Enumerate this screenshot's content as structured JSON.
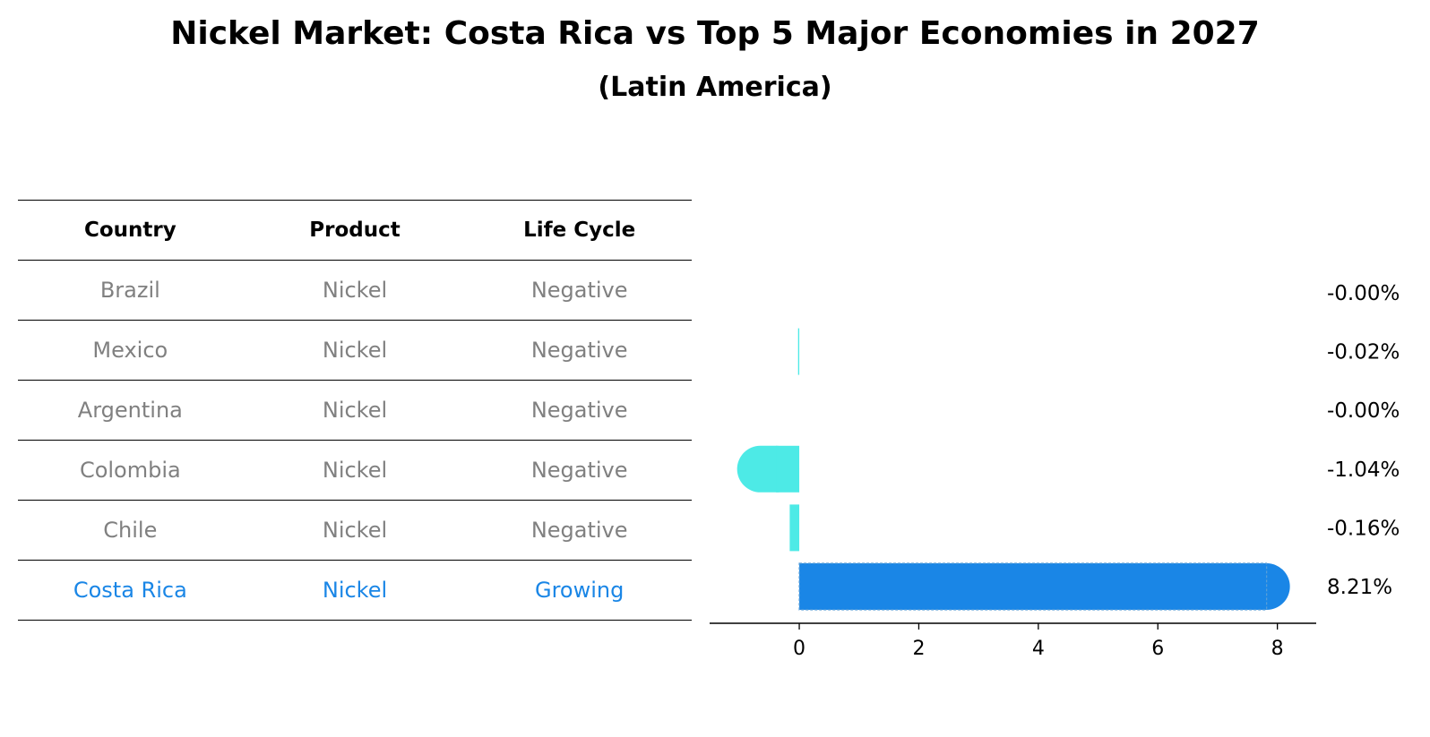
{
  "title": "Nickel Market: Costa Rica vs Top 5 Major Economies in 2027",
  "subtitle": "(Latin America)",
  "table": {
    "headers": [
      "Country",
      "Product",
      "Life Cycle"
    ],
    "rows": [
      [
        "Brazil",
        "Nickel",
        "Negative"
      ],
      [
        "Mexico",
        "Nickel",
        "Negative"
      ],
      [
        "Argentina",
        "Nickel",
        "Negative"
      ],
      [
        "Colombia",
        "Nickel",
        "Negative"
      ],
      [
        "Chile",
        "Nickel",
        "Negative"
      ],
      [
        "Costa Rica",
        "Nickel",
        "Growing"
      ]
    ]
  },
  "colors": {
    "highlight": "#1a86e6",
    "others": "#4deae6",
    "muted_text": "#808080"
  },
  "chart_data": {
    "type": "bar",
    "orientation": "horizontal",
    "title": "Nickel Market: Costa Rica vs Top 5 Major Economies in 2027",
    "subtitle": "(Latin America)",
    "categories": [
      "Brazil",
      "Mexico",
      "Argentina",
      "Colombia",
      "Chile",
      "Costa Rica"
    ],
    "values": [
      -0.001,
      -0.02,
      -0.001,
      -1.04,
      -0.16,
      8.21
    ],
    "value_labels": [
      "-0.00%",
      "-0.02%",
      "-0.00%",
      "-1.04%",
      "-0.16%",
      "8.21%"
    ],
    "highlight": "Costa Rica",
    "xlim": [
      -1.5,
      8.65
    ],
    "xticks": [
      0,
      2,
      4,
      6,
      8
    ],
    "xlabel": "",
    "ylabel": "",
    "grid": false,
    "legend": "none"
  }
}
